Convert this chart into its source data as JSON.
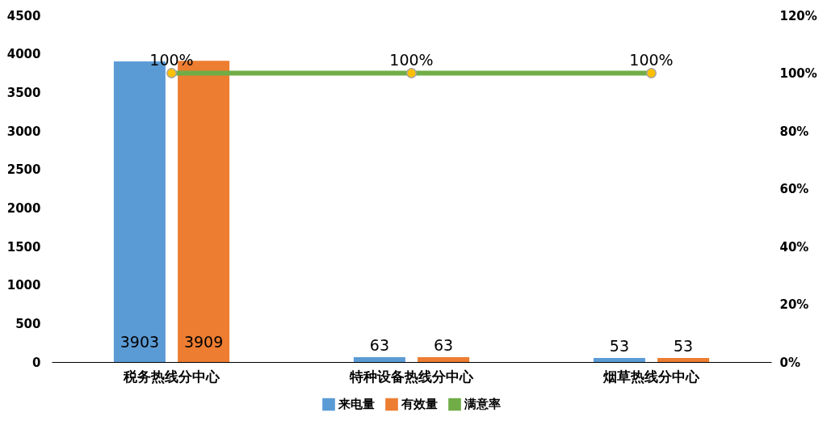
{
  "chart_data": {
    "type": "bar",
    "categories": [
      "税务热线分中心",
      "特种设备热线分中心",
      "烟草热线分中心"
    ],
    "series": [
      {
        "name": "来电量",
        "color": "#5b9bd5",
        "values": [
          3903,
          63,
          53
        ]
      },
      {
        "name": "有效量",
        "color": "#ed7d31",
        "values": [
          3909,
          63,
          53
        ]
      },
      {
        "name": "满意率",
        "type": "line",
        "axis": "y2",
        "color": "#70ad47",
        "values": [
          100,
          100,
          100
        ],
        "value_labels": [
          "100%",
          "100%",
          "100%"
        ]
      }
    ],
    "ylim": [
      0,
      4500
    ],
    "yticks": [
      0,
      500,
      1000,
      1500,
      2000,
      2500,
      3000,
      3500,
      4000,
      4500
    ],
    "y2lim": [
      0,
      120
    ],
    "y2ticks": [
      {
        "value": 0,
        "label": "0%"
      },
      {
        "value": 20,
        "label": "20%"
      },
      {
        "value": 40,
        "label": "40%"
      },
      {
        "value": 60,
        "label": "60%"
      },
      {
        "value": 80,
        "label": "80%"
      },
      {
        "value": 100,
        "label": "100%"
      },
      {
        "value": 120,
        "label": "120%"
      }
    ],
    "data_labels": true,
    "legend": "bottom",
    "grid": false,
    "marker": "circle",
    "line_style": "solid"
  }
}
